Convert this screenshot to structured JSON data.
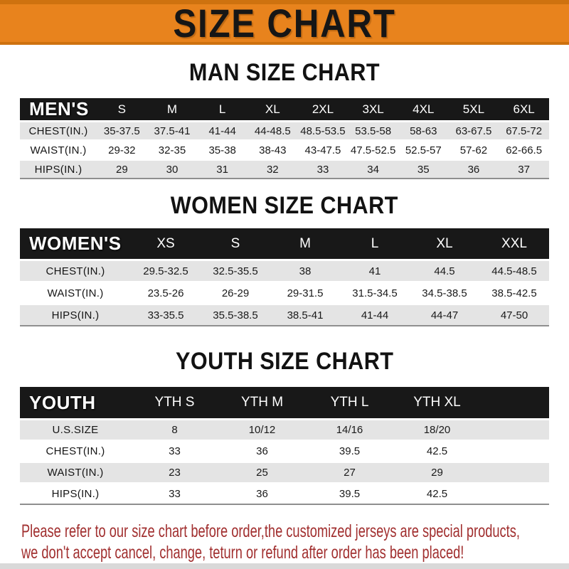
{
  "banner": {
    "title": "SIZE CHART"
  },
  "colors": {
    "banner_orange": "#E8831D",
    "banner_accent": "#CE720F",
    "table_header_black": "#181818",
    "row_gray": "#E4E4E4",
    "footer_red": "#A12F2F"
  },
  "sections": [
    {
      "heading": "MAN SIZE CHART",
      "corner_label": "MEN'S",
      "columns": [
        "S",
        "M",
        "L",
        "XL",
        "2XL",
        "3XL",
        "4XL",
        "5XL",
        "6XL"
      ],
      "rows": [
        {
          "label": "CHEST(IN.)",
          "values": [
            "35-37.5",
            "37.5-41",
            "41-44",
            "44-48.5",
            "48.5-53.5",
            "53.5-58",
            "58-63",
            "63-67.5",
            "67.5-72"
          ]
        },
        {
          "label": "WAIST(IN.)",
          "values": [
            "29-32",
            "32-35",
            "35-38",
            "38-43",
            "43-47.5",
            "47.5-52.5",
            "52.5-57",
            "57-62",
            "62-66.5"
          ]
        },
        {
          "label": "HIPS(IN.)",
          "values": [
            "29",
            "30",
            "31",
            "32",
            "33",
            "34",
            "35",
            "36",
            "37"
          ]
        }
      ]
    },
    {
      "heading": "WOMEN SIZE CHART",
      "corner_label": "WOMEN'S",
      "columns": [
        "XS",
        "S",
        "M",
        "L",
        "XL",
        "XXL"
      ],
      "rows": [
        {
          "label": "CHEST(IN.)",
          "values": [
            "29.5-32.5",
            "32.5-35.5",
            "38",
            "41",
            "44.5",
            "44.5-48.5"
          ]
        },
        {
          "label": "WAIST(IN.)",
          "values": [
            "23.5-26",
            "26-29",
            "29-31.5",
            "31.5-34.5",
            "34.5-38.5",
            "38.5-42.5"
          ]
        },
        {
          "label": "HIPS(IN.)",
          "values": [
            "33-35.5",
            "35.5-38.5",
            "38.5-41",
            "41-44",
            "44-47",
            "47-50"
          ]
        }
      ]
    },
    {
      "heading": "YOUTH SIZE CHART",
      "corner_label": "YOUTH",
      "columns": [
        "YTH S",
        "YTH M",
        "YTH L",
        "YTH XL"
      ],
      "rows": [
        {
          "label": "U.S.SIZE",
          "values": [
            "8",
            "10/12",
            "14/16",
            "18/20"
          ]
        },
        {
          "label": "CHEST(IN.)",
          "values": [
            "33",
            "36",
            "39.5",
            "42.5"
          ]
        },
        {
          "label": "WAIST(IN.)",
          "values": [
            "23",
            "25",
            "27",
            "29"
          ]
        },
        {
          "label": "HIPS(IN.)",
          "values": [
            "33",
            "36",
            "39.5",
            "42.5"
          ]
        }
      ]
    }
  ],
  "footer": {
    "line1": "Please refer to our size chart before order,the customized jerseys are special products,",
    "line2": "we don't accept cancel, change, teturn or refund after order has been placed!"
  }
}
